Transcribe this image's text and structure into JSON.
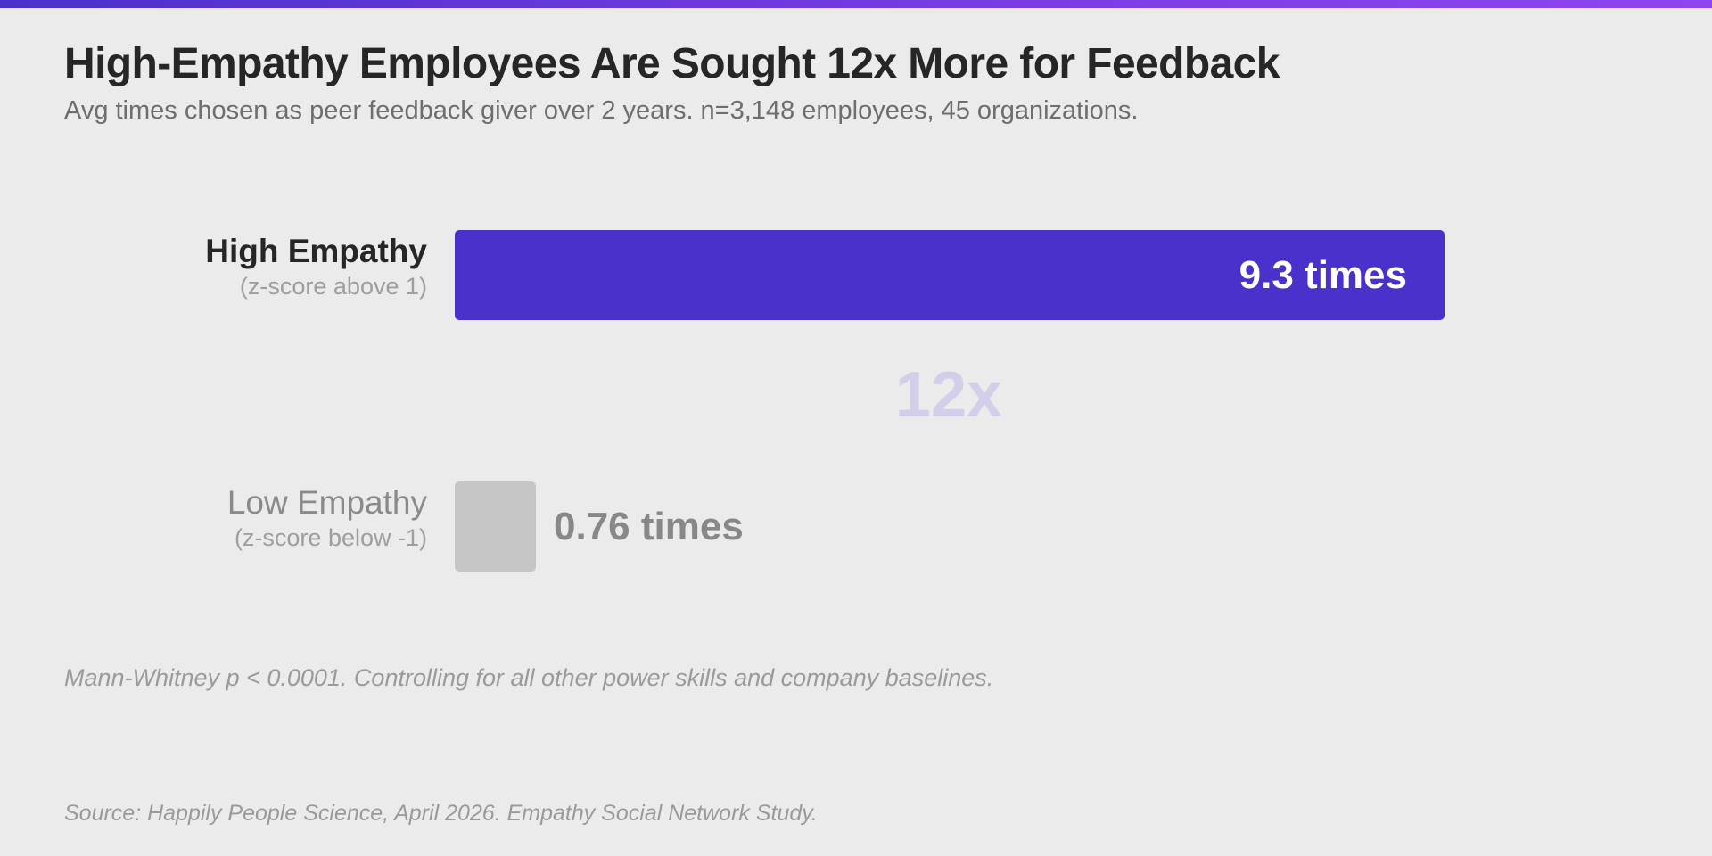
{
  "chart_data": {
    "type": "bar",
    "orientation": "horizontal",
    "title": "High-Empathy Employees Are Sought 12x More for Feedback",
    "subtitle": "Avg times chosen as peer feedback giver over 2 years. n=3,148 employees, 45 organizations.",
    "categories": [
      {
        "label": "High Empathy",
        "sublabel": "(z-score above 1)",
        "value": 9.3,
        "value_label": "9.3 times",
        "color": "#4a31cc",
        "label_color": "#262626",
        "label_bold": true
      },
      {
        "label": "Low Empathy",
        "sublabel": "(z-score below -1)",
        "value": 0.76,
        "value_label": "0.76 times",
        "color": "#c6c6c6",
        "label_color": "#8a8a8a",
        "label_bold": false
      }
    ],
    "annotation": "12x",
    "grid": false,
    "axes_visible": false
  },
  "footnote": "Mann-Whitney p < 0.0001. Controlling for all other power skills and company baselines.",
  "source": "Source: Happily People Science, April 2026. Empathy Social Network Study.",
  "colors": {
    "accent": "#4a31cc",
    "accent_gradient_end": "#8e45f0",
    "background": "#ebebeb",
    "annotation": "#d3cfea"
  }
}
